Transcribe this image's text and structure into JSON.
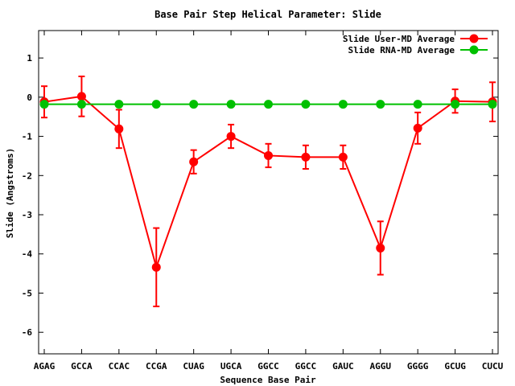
{
  "chart_data": {
    "type": "line",
    "title": "Base Pair Step Helical Parameter: Slide",
    "xlabel": "Sequence Base Pair",
    "ylabel": "Slide (Angstroms)",
    "categories": [
      "AGAG",
      "GCCA",
      "CCAC",
      "CCGA",
      "CUAG",
      "UGCA",
      "GGCC",
      "GGCC",
      "GAUC",
      "AGGU",
      "GGGG",
      "GCUG",
      "CUCU"
    ],
    "ylim": [
      -6.55,
      1.7
    ],
    "yticks": [
      1,
      0,
      -1,
      -2,
      -3,
      -4,
      -5,
      -6
    ],
    "grid": false,
    "legend_position": "top-right",
    "series": [
      {
        "name": "Slide User-MD Average",
        "color": "#ff0000",
        "values": [
          -0.12,
          0.02,
          -0.81,
          -4.34,
          -1.65,
          -1.0,
          -1.49,
          -1.53,
          -1.53,
          -3.85,
          -0.79,
          -0.1,
          -0.12
        ],
        "errors": [
          0.4,
          0.51,
          0.49,
          1.0,
          0.3,
          0.3,
          0.3,
          0.3,
          0.3,
          0.68,
          0.4,
          0.3,
          0.5
        ]
      },
      {
        "name": "Slide RNA-MD Average",
        "color": "#00c000",
        "values": [
          -0.18,
          -0.18,
          -0.18,
          -0.18,
          -0.18,
          -0.18,
          -0.18,
          -0.18,
          -0.18,
          -0.18,
          -0.18,
          -0.18,
          -0.18
        ]
      }
    ]
  }
}
